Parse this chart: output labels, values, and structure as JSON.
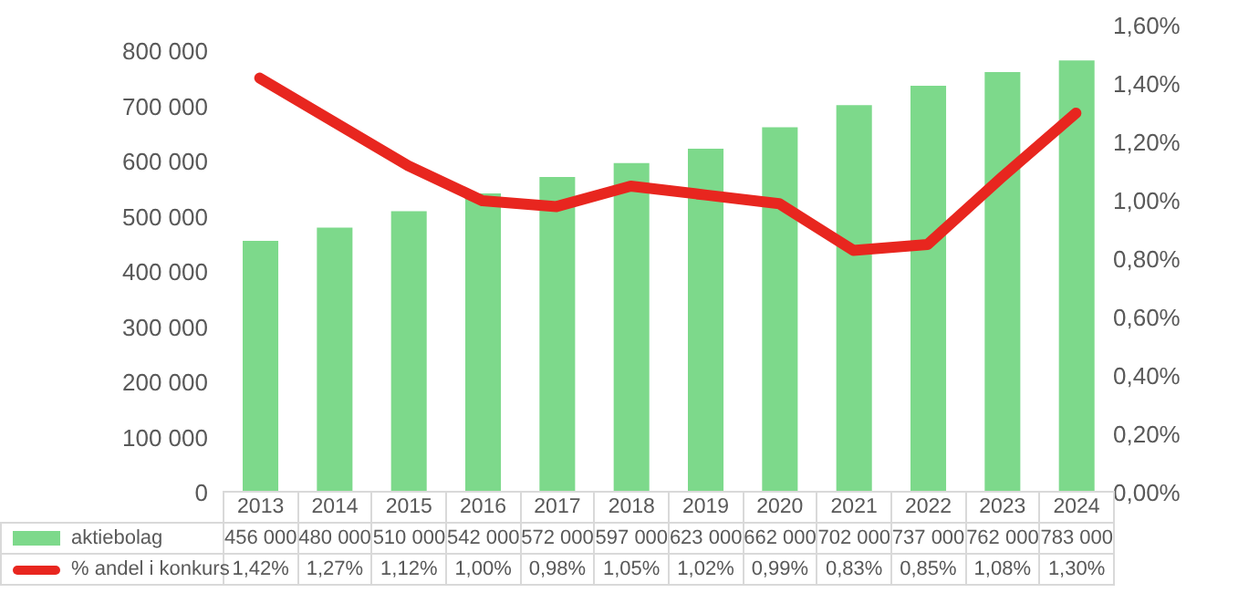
{
  "chart_data": {
    "type": "bar",
    "categories": [
      "2013",
      "2014",
      "2015",
      "2016",
      "2017",
      "2018",
      "2019",
      "2020",
      "2021",
      "2022",
      "2023",
      "2024"
    ],
    "series": [
      {
        "name": "aktiebolag",
        "color": "#7dd98b",
        "values": [
          456000,
          480000,
          510000,
          542000,
          572000,
          597000,
          623000,
          662000,
          702000,
          737000,
          762000,
          783000
        ],
        "value_labels": [
          "456 000",
          "480 000",
          "510 000",
          "542 000",
          "572 000",
          "597 000",
          "623 000",
          "662 000",
          "702 000",
          "737 000",
          "762 000",
          "783 000"
        ]
      },
      {
        "name": "% andel i konkurs",
        "type": "line",
        "axis": "y2",
        "color": "#e8261f",
        "values": [
          1.42,
          1.27,
          1.12,
          1.0,
          0.98,
          1.05,
          1.02,
          0.99,
          0.83,
          0.85,
          1.08,
          1.3
        ],
        "value_labels": [
          "1,42%",
          "1,27%",
          "1,12%",
          "1,00%",
          "0,98%",
          "1,05%",
          "1,02%",
          "0,99%",
          "0,83%",
          "0,85%",
          "1,08%",
          "1,30%"
        ]
      }
    ],
    "ylim": [
      0,
      800000
    ],
    "yticks": [
      {
        "value": 0,
        "label": "0"
      },
      {
        "value": 100000,
        "label": "100 000"
      },
      {
        "value": 200000,
        "label": "200 000"
      },
      {
        "value": 300000,
        "label": "300 000"
      },
      {
        "value": 400000,
        "label": "400 000"
      },
      {
        "value": 500000,
        "label": "500 000"
      },
      {
        "value": 600000,
        "label": "600 000"
      },
      {
        "value": 700000,
        "label": "700 000"
      },
      {
        "value": 800000,
        "label": "800 000"
      }
    ],
    "y2lim": [
      0,
      1.6
    ],
    "y2ticks": [
      {
        "value": 0,
        "label": "0,00%"
      },
      {
        "value": 0.2,
        "label": "0,20%"
      },
      {
        "value": 0.4,
        "label": "0,40%"
      },
      {
        "value": 0.6,
        "label": "0,60%"
      },
      {
        "value": 0.8,
        "label": "0,80%"
      },
      {
        "value": 1.0,
        "label": "1,00%"
      },
      {
        "value": 1.2,
        "label": "1,20%"
      },
      {
        "value": 1.4,
        "label": "1,40%"
      },
      {
        "value": 1.6,
        "label": "1,60%"
      }
    ],
    "grid": false,
    "legend": "bottom",
    "marker": "none",
    "line_style": "solid"
  }
}
